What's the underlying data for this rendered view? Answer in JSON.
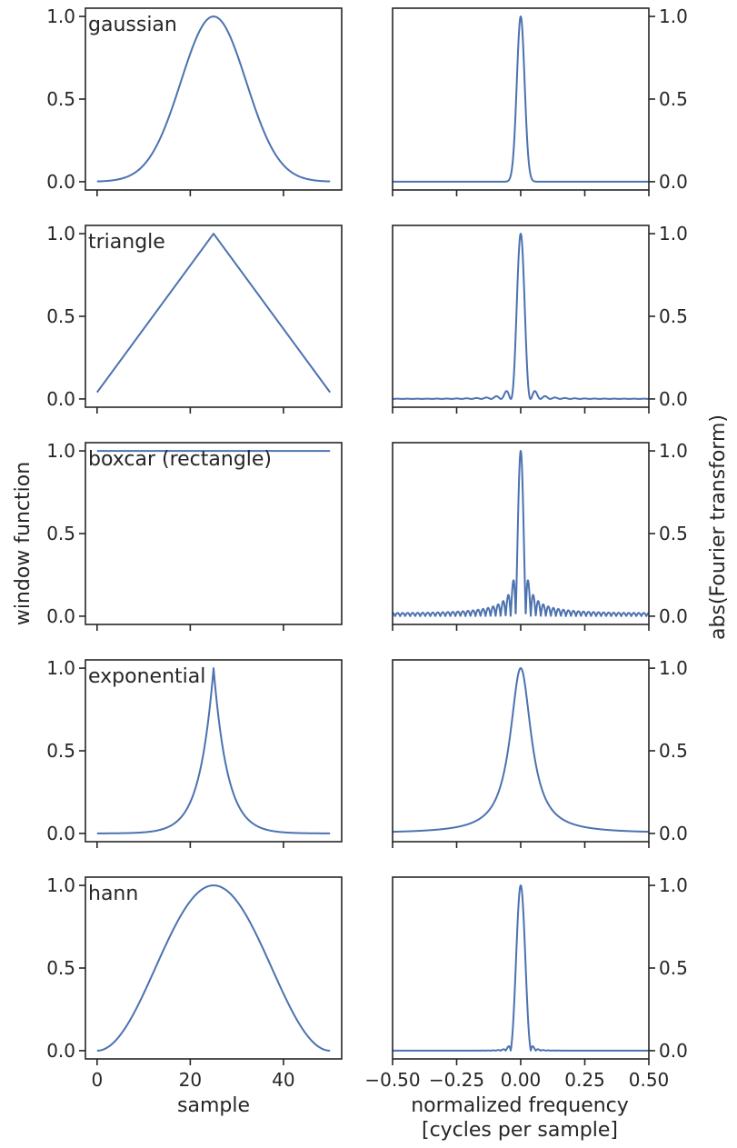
{
  "figure": {
    "left_ylabel": "window function",
    "right_ylabel": "abs(Fourier transform)",
    "left_xlabel": "sample",
    "right_xlabel_line1": "normalized frequency",
    "right_xlabel_line2": "[cycles per sample]",
    "line_color": "#4c72b0",
    "axes_color": "#262626"
  },
  "chart_data": {
    "type": "line",
    "layout": "5 rows x 2 columns",
    "panels": [
      {
        "window": "gaussian",
        "time": {
          "xlim": [
            -2.5,
            52.5
          ],
          "ylim": [
            -0.05,
            1.05
          ],
          "x": [
            0,
            5,
            10,
            15,
            20,
            25,
            30,
            35,
            40,
            45,
            50
          ],
          "y": [
            0.0,
            0.04,
            0.14,
            0.37,
            0.76,
            1.0,
            0.76,
            0.37,
            0.14,
            0.04,
            0.0
          ]
        },
        "frequency": {
          "xlim": [
            -0.5,
            0.5
          ],
          "ylim": [
            -0.05,
            1.05
          ],
          "peak": 1.0,
          "main_lobe_halfwidth": 0.04,
          "sidelobes": "none"
        }
      },
      {
        "window": "triangle",
        "time": {
          "xlim": [
            -2.5,
            52.5
          ],
          "ylim": [
            -0.05,
            1.05
          ],
          "x": [
            0,
            25,
            50
          ],
          "y": [
            0.04,
            1.0,
            0.04
          ]
        },
        "frequency": {
          "xlim": [
            -0.5,
            0.5
          ],
          "ylim": [
            -0.05,
            1.05
          ],
          "peak": 1.0,
          "main_lobe_halfwidth": 0.04,
          "first_sidelobe": 0.05
        }
      },
      {
        "window": "boxcar (rectangle)",
        "time": {
          "xlim": [
            -2.5,
            52.5
          ],
          "ylim": [
            -0.05,
            1.05
          ],
          "x": [
            0,
            50
          ],
          "y": [
            1.0,
            1.0
          ]
        },
        "frequency": {
          "xlim": [
            -0.5,
            0.5
          ],
          "ylim": [
            -0.05,
            1.05
          ],
          "peak": 1.0,
          "main_lobe_halfwidth": 0.02,
          "first_sidelobe": 0.22
        }
      },
      {
        "window": "exponential",
        "time": {
          "xlim": [
            -2.5,
            52.5
          ],
          "ylim": [
            -0.05,
            1.05
          ],
          "x": [
            0,
            5,
            10,
            15,
            20,
            25,
            30,
            35,
            40,
            45,
            50
          ],
          "y": [
            0.0,
            0.0,
            0.01,
            0.05,
            0.22,
            1.0,
            0.22,
            0.05,
            0.01,
            0.0,
            0.0
          ]
        },
        "frequency": {
          "xlim": [
            -0.5,
            0.5
          ],
          "ylim": [
            -0.05,
            1.05
          ],
          "peak": 1.0,
          "shape": "lorentzian",
          "half_width_at_half_max": 0.05
        }
      },
      {
        "window": "hann",
        "time": {
          "xlim": [
            -2.5,
            52.5
          ],
          "ylim": [
            -0.05,
            1.05
          ],
          "x": [
            0,
            5,
            10,
            15,
            20,
            25,
            30,
            35,
            40,
            45,
            50
          ],
          "y": [
            0.0,
            0.1,
            0.35,
            0.65,
            0.9,
            1.0,
            0.9,
            0.65,
            0.35,
            0.1,
            0.0
          ]
        },
        "frequency": {
          "xlim": [
            -0.5,
            0.5
          ],
          "ylim": [
            -0.05,
            1.05
          ],
          "peak": 1.0,
          "main_lobe_halfwidth": 0.04,
          "first_sidelobe": 0.025
        }
      }
    ],
    "time_xticks": [
      "0",
      "20",
      "40"
    ],
    "time_xtick_values": [
      0,
      20,
      40
    ],
    "freq_xticks": [
      "−0.50",
      "−0.25",
      "0.00",
      "0.25",
      "0.50"
    ],
    "freq_xtick_values": [
      -0.5,
      -0.25,
      0,
      0.25,
      0.5
    ],
    "yticks": [
      "0.0",
      "0.5",
      "1.0"
    ],
    "ytick_values": [
      0,
      0.5,
      1.0
    ],
    "grid": false
  }
}
